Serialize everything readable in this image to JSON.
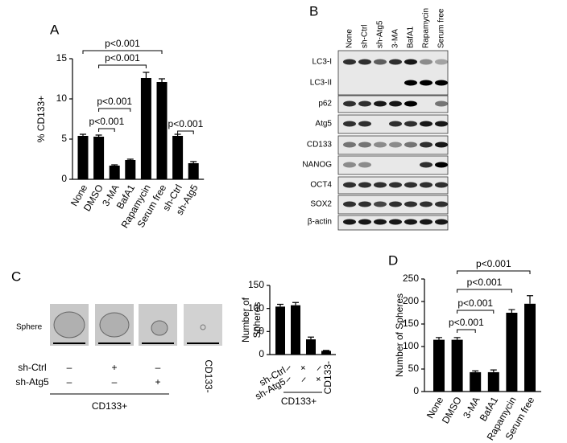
{
  "panels": {
    "a": "A",
    "b": "B",
    "c": "C",
    "d": "D"
  },
  "chart_data": [
    {
      "type": "bar",
      "y_label": "% CD133+",
      "categories": [
        "None",
        "DMSO",
        "3-MA",
        "BafA1",
        "Rapamycin",
        "Serum free",
        "sh-Ctrl",
        "sh-Atg5"
      ],
      "values": [
        5.4,
        5.3,
        1.7,
        2.4,
        12.6,
        12.1,
        5.4,
        2.0
      ],
      "errors": [
        0.2,
        0.2,
        0.1,
        0.1,
        0.7,
        0.4,
        0.2,
        0.2
      ],
      "color": "#000000",
      "ylim": [
        0,
        15
      ],
      "yticks": [
        0,
        5,
        10,
        15
      ],
      "annotations": [
        "p<0.001",
        "p<0.001",
        "p<0.001",
        "p<0.001",
        "p<0.001"
      ]
    },
    {
      "type": "bar",
      "y_label": [
        "Number of",
        "Spheres"
      ],
      "categories": [
        null,
        null,
        null,
        "CD133-"
      ],
      "values": [
        104,
        107,
        33,
        8
      ],
      "errors": [
        5,
        6,
        5,
        1
      ],
      "color": "#000000",
      "ylim": [
        0,
        150
      ],
      "yticks": [
        0,
        50,
        100,
        150
      ],
      "row_labels": [
        "sh-Ctrl",
        "sh-Atg5"
      ],
      "signs": [
        [
          "–",
          "+",
          "–"
        ],
        [
          "–",
          "–",
          "+"
        ]
      ],
      "group_label": "CD133+"
    },
    {
      "type": "bar",
      "y_label": "Number of Spheres",
      "categories": [
        "None",
        "DMSO",
        "3-MA",
        "BafA1",
        "Rapamycin",
        "Serum free"
      ],
      "values": [
        115,
        115,
        43,
        43,
        175,
        195
      ],
      "errors": [
        5,
        5,
        3,
        5,
        7,
        18
      ],
      "color": "#000000",
      "ylim": [
        0,
        250
      ],
      "yticks": [
        0,
        50,
        100,
        150,
        200,
        250
      ],
      "annotations": [
        "p<0.001",
        "p<0.001",
        "p<0.001",
        "p<0.001"
      ]
    }
  ],
  "blot": {
    "columns": [
      "None",
      "sh-Ctrl",
      "sh-Atg5",
      "3-MA",
      "BafA1",
      "Rapamycin",
      "Serum free"
    ],
    "rows": [
      "LC3-I",
      "LC3-II",
      "p62",
      "Atg5",
      "CD133",
      "NANOG",
      "OCT4",
      "SOX2",
      "β-actin"
    ]
  },
  "spheres": {
    "row_label": "Sphere",
    "row_labels": [
      "sh-Ctrl",
      "sh-Atg5"
    ],
    "signs": [
      [
        "–",
        "+",
        "–"
      ],
      [
        "–",
        "–",
        "+"
      ]
    ],
    "group_label": "CD133+",
    "negative_label": "CD133-"
  }
}
